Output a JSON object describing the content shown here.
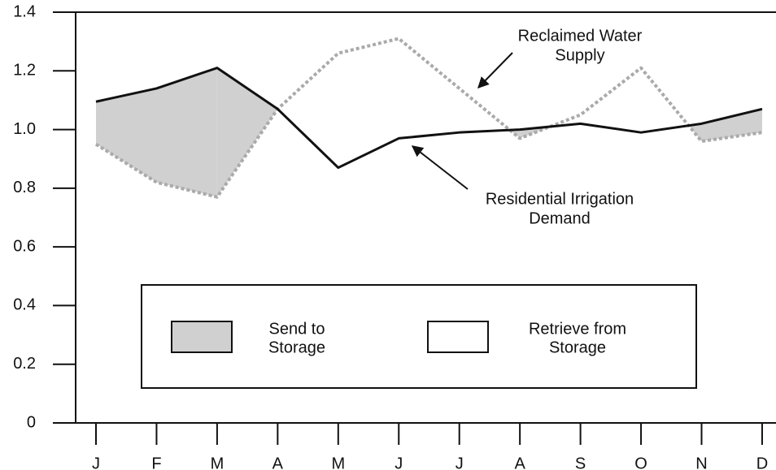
{
  "chart_data": {
    "type": "line",
    "categories": [
      "J",
      "F",
      "M",
      "A",
      "M",
      "J",
      "J",
      "A",
      "S",
      "O",
      "N",
      "D"
    ],
    "series": [
      {
        "color": "#111111",
        "dash": "none",
        "values": [
          1.095,
          1.14,
          1.21,
          1.07,
          0.87,
          0.97,
          0.99,
          1.0,
          1.02,
          0.99,
          1.02,
          1.07
        ]
      },
      {
        "color": "#aaaaaa",
        "dash": "4 3",
        "values": [
          0.95,
          0.82,
          0.77,
          1.07,
          1.26,
          1.31,
          1.14,
          0.97,
          1.05,
          1.21,
          0.96,
          0.99
        ]
      }
    ],
    "fill_color": "#d0d0d0",
    "ylim": [
      0,
      1.4
    ],
    "yticks": [
      0,
      0.2,
      0.4,
      0.6,
      0.8,
      {
        "value": 1,
        "label": "1.0"
      },
      1.2,
      1.4
    ],
    "annotations": [
      {
        "lines": [
          "Reclaimed Water",
          "Supply"
        ]
      },
      {
        "lines": [
          "Residential Irrigation",
          "Demand"
        ]
      }
    ],
    "legend": [
      {
        "lines": [
          "Send to",
          "Storage"
        ],
        "fill": "#d0d0d0"
      },
      {
        "lines": [
          "Retrieve from",
          "Storage"
        ],
        "fill": "#ffffff"
      }
    ]
  }
}
